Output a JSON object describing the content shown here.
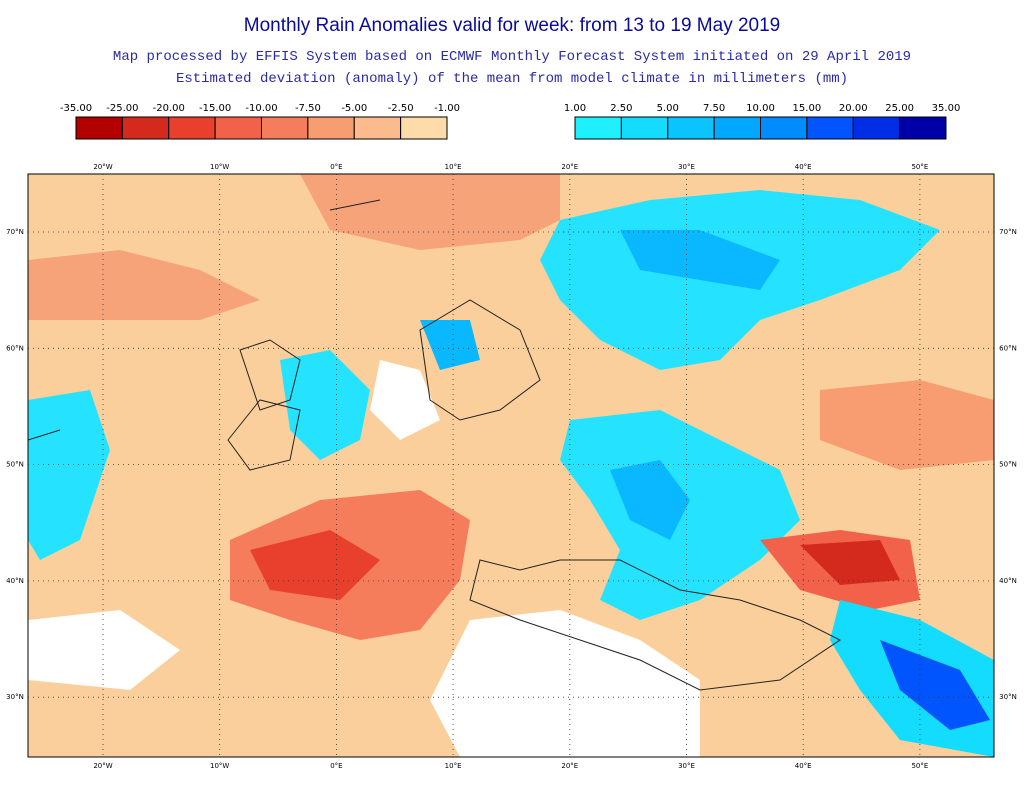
{
  "header": {
    "title": "Monthly Rain Anomalies valid for week: from 13 to 19 May 2019",
    "subtitle": "Map processed by EFFIS System based on ECMWF Monthly Forecast System initiated on 29 April 2019",
    "description": "Estimated deviation (anomaly) of the mean from model climate in millimeters (mm)"
  },
  "legend_negative": {
    "labels": [
      "-35.00",
      "-25.00",
      "-20.00",
      "-15.00",
      "-10.00",
      "-7.50",
      "-5.00",
      "-2.50",
      "-1.00"
    ],
    "colors": [
      "#b30000",
      "#d42a1e",
      "#e8402c",
      "#f2624a",
      "#f57d5c",
      "#f89c72",
      "#fbbb8c",
      "#fddcaa"
    ]
  },
  "legend_positive": {
    "labels": [
      "1.00",
      "2.50",
      "5.00",
      "7.50",
      "10.00",
      "15.00",
      "20.00",
      "25.00",
      "35.00"
    ],
    "colors": [
      "#1ef0ff",
      "#14dcff",
      "#0ac3ff",
      "#00a8ff",
      "#008cff",
      "#0055ff",
      "#002ee6",
      "#0000a8"
    ]
  },
  "map": {
    "lon_labels": [
      "20°W",
      "10°W",
      "0°E",
      "10°E",
      "20°E",
      "30°E",
      "40°E",
      "50°E"
    ],
    "lat_labels": [
      "70°N",
      "60°N",
      "50°N",
      "40°N",
      "30°N"
    ]
  }
}
